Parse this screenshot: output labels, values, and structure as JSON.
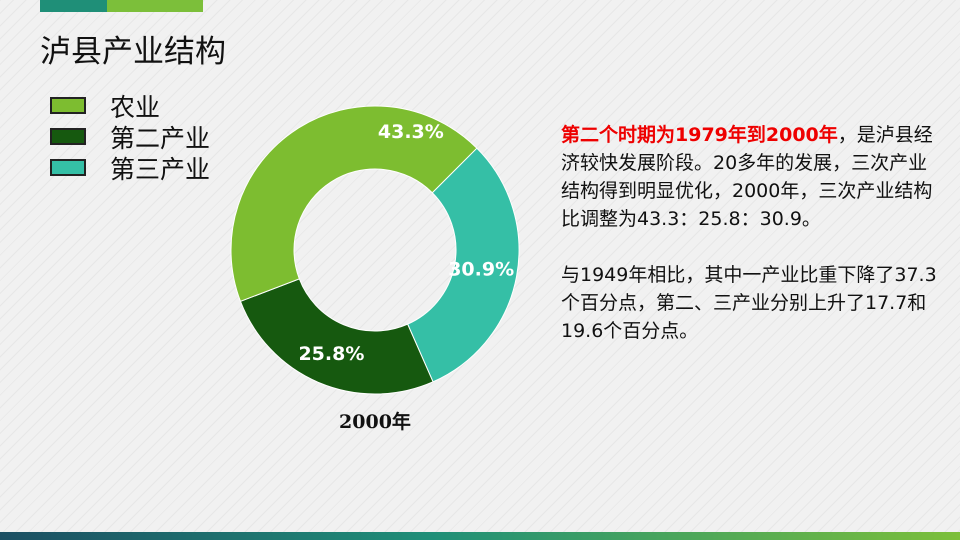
{
  "title": "泸县产业结构",
  "colors": {
    "primary": "#7dbd30",
    "secondary": "#16590f",
    "tertiary": "#35bfa6",
    "highlight": "#ee0000"
  },
  "chart_data": {
    "type": "pie",
    "variant": "donut",
    "title": "2000年",
    "categories": [
      "农业",
      "第二产业",
      "第三产业"
    ],
    "values": [
      43.3,
      25.8,
      30.9
    ],
    "labels": [
      "43.3%",
      "25.8%",
      "30.9%"
    ],
    "colors": [
      "#7dbd30",
      "#16590f",
      "#35bfa6"
    ],
    "legend": "top-left"
  },
  "text": {
    "para1_highlight": "第二个时期为1979年到2000年",
    "para1_rest": "，是泸县经济较快发展阶段。20多年的发展，三次产业结构得到明显优化，2000年，三次产业结构比调整为43.3：25.8：30.9。",
    "para2": "与1949年相比，其中一产业比重下降了37.3个百分点，第二、三产业分别上升了17.7和19.6个百分点。"
  }
}
